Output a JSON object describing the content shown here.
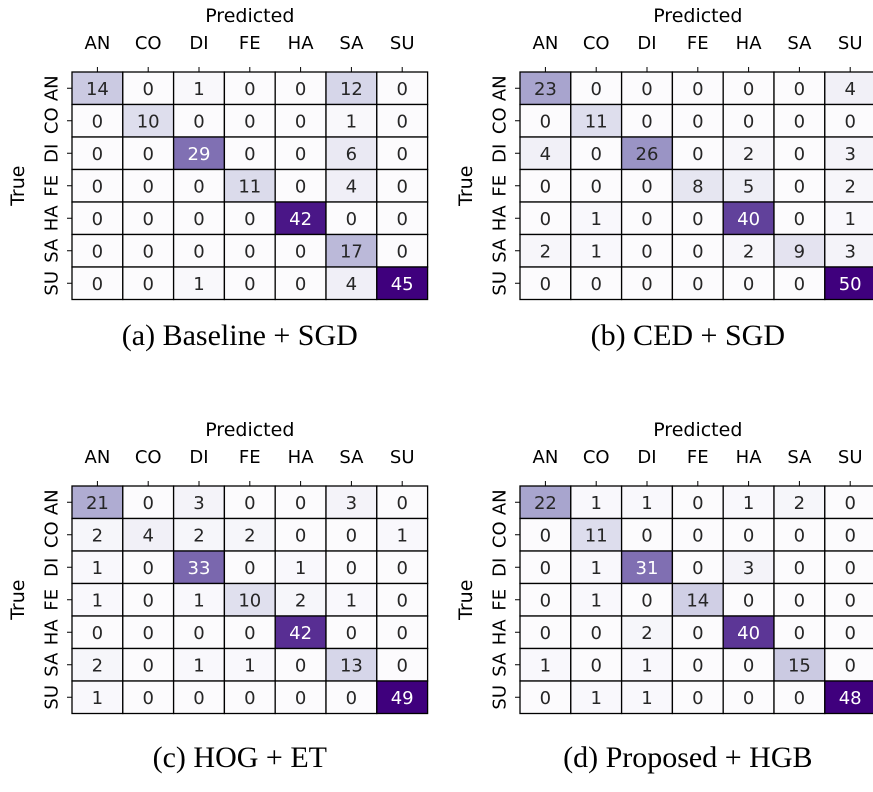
{
  "chart_data": [
    {
      "type": "heatmap",
      "title": "",
      "caption": "(a) Baseline + SGD",
      "xlabel": "Predicted",
      "ylabel": "True",
      "x_categories": [
        "AN",
        "CO",
        "DI",
        "FE",
        "HA",
        "SA",
        "SU"
      ],
      "y_categories": [
        "AN",
        "CO",
        "DI",
        "FE",
        "HA",
        "SA",
        "SU"
      ],
      "colormap": "Purples",
      "values": [
        [
          14,
          0,
          1,
          0,
          0,
          12,
          0
        ],
        [
          0,
          10,
          0,
          0,
          0,
          1,
          0
        ],
        [
          0,
          0,
          29,
          0,
          0,
          6,
          0
        ],
        [
          0,
          0,
          0,
          11,
          0,
          4,
          0
        ],
        [
          0,
          0,
          0,
          0,
          42,
          0,
          0
        ],
        [
          0,
          0,
          0,
          0,
          0,
          17,
          0
        ],
        [
          0,
          0,
          1,
          0,
          0,
          4,
          45
        ]
      ]
    },
    {
      "type": "heatmap",
      "title": "",
      "caption": "(b) CED + SGD",
      "xlabel": "Predicted",
      "ylabel": "True",
      "x_categories": [
        "AN",
        "CO",
        "DI",
        "FE",
        "HA",
        "SA",
        "SU"
      ],
      "y_categories": [
        "AN",
        "CO",
        "DI",
        "FE",
        "HA",
        "SA",
        "SU"
      ],
      "colormap": "Purples",
      "values": [
        [
          23,
          0,
          0,
          0,
          0,
          0,
          4
        ],
        [
          0,
          11,
          0,
          0,
          0,
          0,
          0
        ],
        [
          4,
          0,
          26,
          0,
          2,
          0,
          3
        ],
        [
          0,
          0,
          0,
          8,
          5,
          0,
          2
        ],
        [
          0,
          1,
          0,
          0,
          40,
          0,
          1
        ],
        [
          2,
          1,
          0,
          0,
          2,
          9,
          3
        ],
        [
          0,
          0,
          0,
          0,
          0,
          0,
          50
        ]
      ]
    },
    {
      "type": "heatmap",
      "title": "",
      "caption": "(c) HOG + ET",
      "xlabel": "Predicted",
      "ylabel": "True",
      "x_categories": [
        "AN",
        "CO",
        "DI",
        "FE",
        "HA",
        "SA",
        "SU"
      ],
      "y_categories": [
        "AN",
        "CO",
        "DI",
        "FE",
        "HA",
        "SA",
        "SU"
      ],
      "colormap": "Purples",
      "values": [
        [
          21,
          0,
          3,
          0,
          0,
          3,
          0
        ],
        [
          2,
          4,
          2,
          2,
          0,
          0,
          1
        ],
        [
          1,
          0,
          33,
          0,
          1,
          0,
          0
        ],
        [
          1,
          0,
          1,
          10,
          2,
          1,
          0
        ],
        [
          0,
          0,
          0,
          0,
          42,
          0,
          0
        ],
        [
          2,
          0,
          1,
          1,
          0,
          13,
          0
        ],
        [
          1,
          0,
          0,
          0,
          0,
          0,
          49
        ]
      ]
    },
    {
      "type": "heatmap",
      "title": "",
      "caption": "(d) Proposed + HGB",
      "xlabel": "Predicted",
      "ylabel": "True",
      "x_categories": [
        "AN",
        "CO",
        "DI",
        "FE",
        "HA",
        "SA",
        "SU"
      ],
      "y_categories": [
        "AN",
        "CO",
        "DI",
        "FE",
        "HA",
        "SA",
        "SU"
      ],
      "colormap": "Purples",
      "values": [
        [
          22,
          1,
          1,
          0,
          1,
          2,
          0
        ],
        [
          0,
          11,
          0,
          0,
          0,
          0,
          0
        ],
        [
          0,
          1,
          31,
          0,
          3,
          0,
          0
        ],
        [
          0,
          1,
          0,
          14,
          0,
          0,
          0
        ],
        [
          0,
          0,
          2,
          0,
          40,
          0,
          0
        ],
        [
          1,
          0,
          1,
          0,
          0,
          15,
          0
        ],
        [
          0,
          1,
          1,
          0,
          0,
          0,
          48
        ]
      ]
    }
  ]
}
